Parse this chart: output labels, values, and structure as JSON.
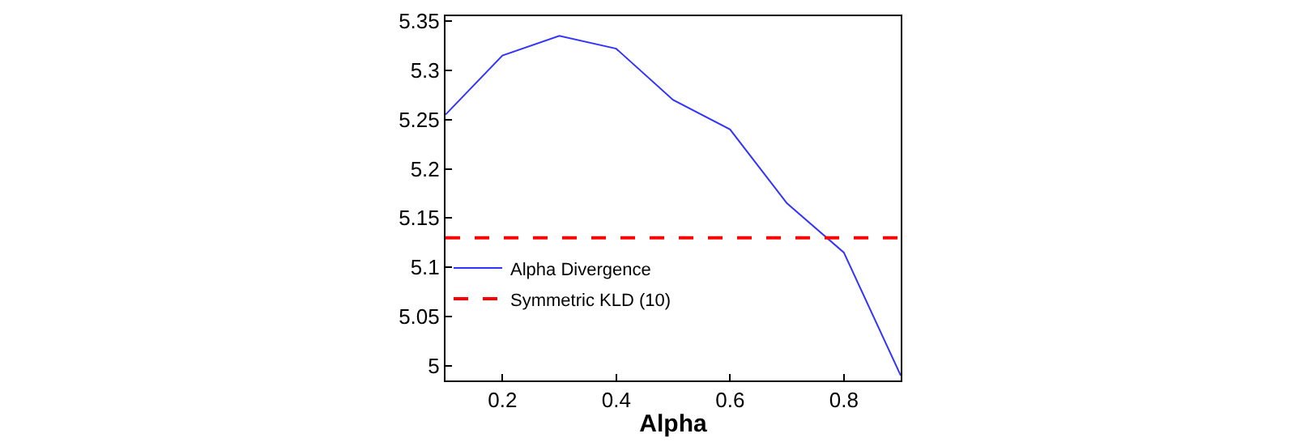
{
  "chart_data": {
    "type": "line",
    "xlabel": "Alpha",
    "x": [
      0.1,
      0.2,
      0.3,
      0.4,
      0.5,
      0.6,
      0.7,
      0.8,
      0.9
    ],
    "series": [
      {
        "name": "Alpha Divergence",
        "color": "#3333ff",
        "values": [
          5.255,
          5.315,
          5.335,
          5.322,
          5.27,
          5.24,
          5.165,
          5.115,
          4.99
        ]
      }
    ],
    "ref_lines": [
      {
        "axis": "y",
        "value": 5.13,
        "label": "Symmetric KLD (10)",
        "color": "#ff0000",
        "line_style": "dashed"
      }
    ],
    "xlim": [
      0.1,
      0.9
    ],
    "xticks": [
      0.2,
      0.4,
      0.6,
      0.8
    ],
    "ylim": [
      4.985,
      5.355
    ],
    "yticks": [
      5,
      5.05,
      5.1,
      5.15,
      5.2,
      5.25,
      5.3,
      5.35
    ],
    "legend": "bottom left",
    "marker": "none",
    "line_style": "solid"
  }
}
